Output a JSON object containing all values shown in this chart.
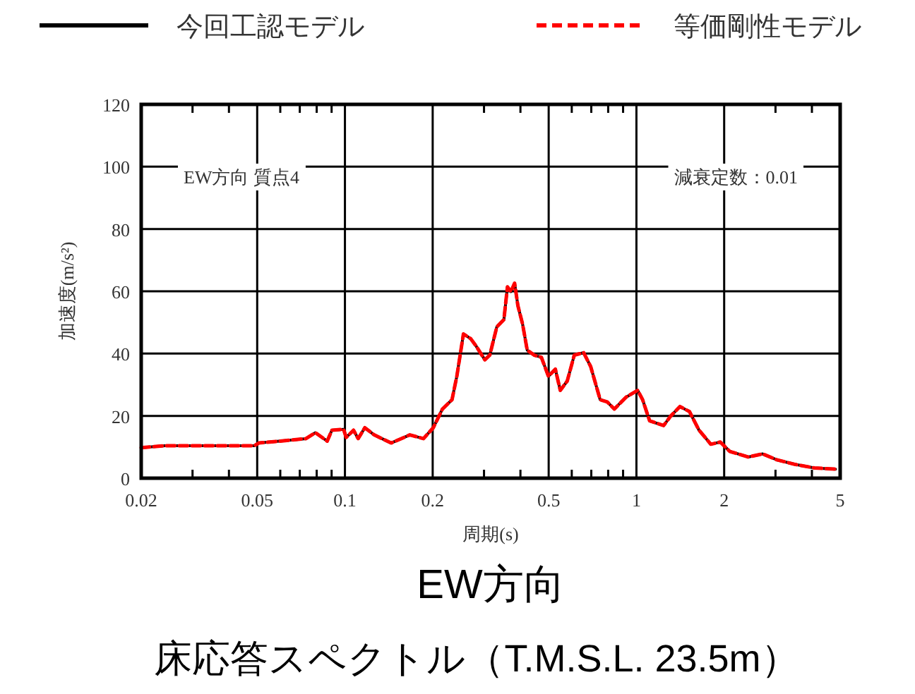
{
  "chart_data": {
    "type": "line",
    "title": "EW方向",
    "subtitle": "床応答スペクトル（T.M.S.L. 23.5m）",
    "xlabel": "周期(s)",
    "ylabel": "加速度(m/s²)",
    "log": "x",
    "grid": true,
    "legend": "top",
    "annotations": [
      "EW方向 質点4",
      "減衰定数：0.01"
    ],
    "xlim": [
      0.02,
      5
    ],
    "ylim": [
      0,
      120
    ],
    "xticks": [
      0.02,
      {
        "value": 0.03,
        "label": null
      },
      {
        "value": 0.04,
        "label": null
      },
      0.05,
      {
        "value": 0.06,
        "label": null
      },
      {
        "value": 0.07,
        "label": null
      },
      {
        "value": 0.08,
        "label": null
      },
      {
        "value": 0.09,
        "label": null
      },
      0.1,
      0.2,
      {
        "value": 0.3,
        "label": null
      },
      {
        "value": 0.4,
        "label": null
      },
      0.5,
      {
        "value": 0.6,
        "label": null
      },
      {
        "value": 0.7,
        "label": null
      },
      {
        "value": 0.8,
        "label": null
      },
      {
        "value": 0.9,
        "label": null
      },
      1,
      2,
      {
        "value": 3,
        "label": null
      },
      {
        "value": 4,
        "label": null
      },
      5
    ],
    "yticks": [
      0,
      20,
      40,
      60,
      80,
      100,
      120
    ],
    "x": [
      0.02,
      0.0241,
      0.0488,
      0.0507,
      0.0633,
      0.0735,
      0.0792,
      0.0869,
      0.0902,
      0.0989,
      0.101,
      0.107,
      0.111,
      0.117,
      0.126,
      0.144,
      0.167,
      0.186,
      0.201,
      0.216,
      0.233,
      0.242,
      0.255,
      0.27,
      0.281,
      0.302,
      0.314,
      0.332,
      0.351,
      0.361,
      0.371,
      0.382,
      0.392,
      0.407,
      0.422,
      0.446,
      0.472,
      0.499,
      0.527,
      0.548,
      0.579,
      0.612,
      0.659,
      0.697,
      0.751,
      0.794,
      0.84,
      0.921,
      1.01,
      1.05,
      1.11,
      1.24,
      1.31,
      1.41,
      1.52,
      1.64,
      1.8,
      1.94,
      2.09,
      2.42,
      2.71,
      3.03,
      3.51,
      4.08,
      4.82
    ],
    "series": [
      {
        "name": "今回工認モデル",
        "color": "#000000",
        "line_style": "solid",
        "values": [
          9.8,
          10.4,
          10.4,
          11.3,
          12.1,
          12.7,
          14.6,
          11.9,
          15.4,
          15.7,
          13.1,
          15.4,
          12.7,
          16.2,
          13.9,
          11.3,
          13.9,
          12.7,
          16.2,
          22.2,
          25.2,
          32.7,
          46.3,
          44.8,
          42.6,
          38.0,
          39.5,
          48.6,
          50.9,
          61.4,
          59.9,
          62.6,
          55.4,
          49.4,
          41.1,
          39.5,
          38.8,
          32.7,
          35.0,
          28.2,
          31.2,
          39.5,
          40.3,
          35.8,
          25.2,
          24.5,
          22.2,
          26.0,
          28.2,
          25.2,
          18.4,
          16.9,
          19.9,
          23.0,
          21.4,
          15.4,
          10.9,
          11.6,
          8.6,
          6.8,
          7.8,
          5.9,
          4.4,
          3.3,
          2.9
        ]
      },
      {
        "name": "等価剛性モデル",
        "color": "#ff0000",
        "line_style": "dashed",
        "values": [
          9.8,
          10.4,
          10.4,
          11.3,
          12.1,
          12.7,
          14.6,
          11.9,
          15.4,
          15.7,
          13.1,
          15.4,
          12.7,
          16.2,
          13.9,
          11.3,
          13.9,
          12.7,
          16.2,
          22.2,
          25.2,
          32.7,
          46.3,
          44.8,
          42.6,
          38.0,
          39.5,
          48.6,
          50.9,
          61.4,
          59.9,
          62.6,
          55.4,
          49.4,
          41.1,
          39.5,
          38.8,
          32.7,
          35.0,
          28.2,
          31.2,
          39.5,
          40.3,
          35.8,
          25.2,
          24.5,
          22.2,
          26.0,
          28.2,
          25.2,
          18.4,
          16.9,
          19.9,
          23.0,
          21.4,
          15.4,
          10.9,
          11.6,
          8.6,
          6.8,
          7.8,
          5.9,
          4.4,
          3.3,
          2.9
        ]
      }
    ]
  }
}
